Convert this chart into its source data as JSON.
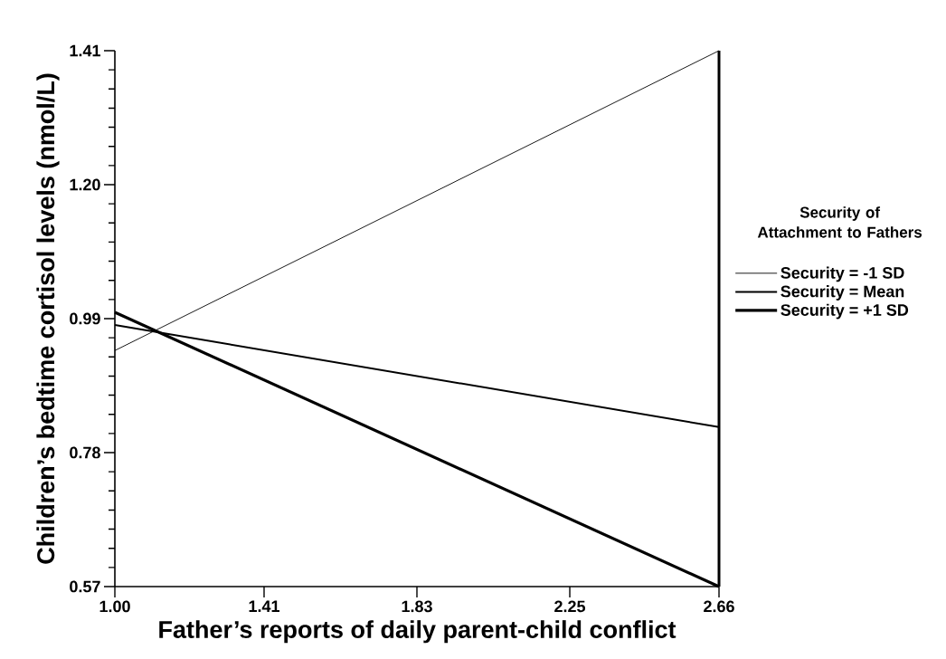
{
  "chart_data": {
    "type": "line",
    "xlabel": "Father’s reports of daily parent-child conflict",
    "ylabel": "Children’s bedtime cortisol levels (nmol/L)",
    "legend_title": "Security of Attachment to Fathers",
    "x": [
      1.0,
      2.66
    ],
    "series": [
      {
        "name": "Security = -1 SD",
        "color": "#000000",
        "values": [
          0.94,
          1.41
        ]
      },
      {
        "name": "Security = Mean",
        "color": "#000000",
        "values": [
          0.98,
          0.82
        ]
      },
      {
        "name": "Security = +1 SD",
        "color": "#000000",
        "values": [
          1.0,
          0.57
        ]
      }
    ],
    "xlim": [
      1.0,
      2.66
    ],
    "ylim": [
      0.57,
      1.41
    ],
    "xticks": [
      {
        "value": 1.0,
        "label": "1.00"
      },
      1.41,
      1.83,
      2.25,
      2.66
    ],
    "yticks": [
      0.57,
      0.78,
      0.99,
      {
        "value": 1.2,
        "label": "1.20"
      },
      1.41
    ],
    "legend": "right",
    "grid": false,
    "marker": "none",
    "line_style": "solid"
  }
}
